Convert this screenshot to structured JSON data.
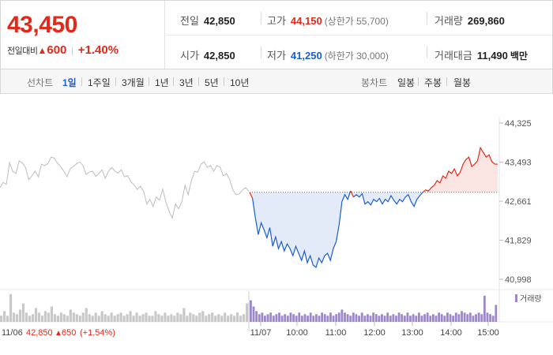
{
  "summary": {
    "current_price": "43,450",
    "change_label": "전일대비",
    "change_triangle": "▲",
    "change_value": "600",
    "change_rate": "+1.40%",
    "stats": [
      {
        "key": "전일",
        "value": "42,850",
        "sub": "",
        "tone": "normal"
      },
      {
        "key": "고가",
        "value": "44,150",
        "sub": "(상한가 55,700)",
        "tone": "up"
      },
      {
        "key": "거래량",
        "value": "269,860",
        "sub": "",
        "tone": "normal"
      },
      {
        "key": "시가",
        "value": "42,850",
        "sub": "",
        "tone": "normal"
      },
      {
        "key": "저가",
        "value": "41,250",
        "sub": "(하한가 30,000)",
        "tone": "down"
      },
      {
        "key": "거래대금",
        "value": "11,490",
        "sub": "백만",
        "tone": "normal"
      }
    ]
  },
  "tabs": {
    "line_label": "선차트",
    "line_periods": [
      "1일",
      "1주일",
      "3개월",
      "1년",
      "3년",
      "5년",
      "10년"
    ],
    "active_period": "1일",
    "candle_label": "봉차트",
    "candle_periods": [
      "일봉",
      "주봉",
      "월봉"
    ]
  },
  "chart_data": {
    "type": "line",
    "y_ticks": [
      "44,325",
      "43,493",
      "42,661",
      "41,829",
      "40,998"
    ],
    "y_range": [
      40998,
      44325
    ],
    "prev_close": 42850,
    "x_ticks": [
      "11/07",
      "10:00",
      "11:00",
      "12:00",
      "13:00",
      "14:00",
      "15:00"
    ],
    "volume_legend": "거래량",
    "footer_date": "11/06",
    "footer_price": "42,850",
    "footer_triangle": "▲",
    "footer_change": "650",
    "footer_rate": "(+1.54%)",
    "colors": {
      "up": "#e12a1b",
      "down": "#1a5ed1",
      "prev_day": "#bdbdbd",
      "volume": "#9c87c9"
    },
    "prev_day_series": [
      42950,
      43060,
      43020,
      43480,
      43300,
      43250,
      43520,
      43480,
      43380,
      43120,
      43200,
      43300,
      43180,
      43450,
      43420,
      43460,
      43600,
      43580,
      43470,
      43400,
      43300,
      43180,
      43350,
      43400,
      43460,
      43500,
      43420,
      43230,
      43280,
      43300,
      43190,
      43250,
      43330,
      43150,
      43300,
      43380,
      43300,
      43260,
      43330,
      43180,
      43210,
      43080,
      43010,
      42910,
      42980,
      42880,
      42600,
      42700,
      42550,
      42750,
      42680,
      42920,
      42640,
      42450,
      42300,
      42600,
      42500,
      42650,
      43000,
      42800,
      43100,
      43300,
      43280,
      43450,
      43500,
      43380,
      43420,
      43300,
      43420,
      43380,
      43200,
      43250,
      43120,
      42900,
      42800,
      42820,
      42900,
      42950,
      42870
    ],
    "today_series": [
      42850,
      42720,
      42300,
      41950,
      42200,
      42050,
      41880,
      42100,
      41700,
      41900,
      41650,
      41800,
      41600,
      41750,
      41650,
      41500,
      41700,
      41550,
      41400,
      41600,
      41350,
      41500,
      41300,
      41250,
      41450,
      41350,
      41500,
      41550,
      41400,
      41650,
      41800,
      42150,
      42650,
      42800,
      42700,
      42880,
      42750,
      42800,
      42750,
      42820,
      42600,
      42650,
      42580,
      42700,
      42650,
      42720,
      42600,
      42700,
      42650,
      42780,
      42680,
      42600,
      42700,
      42650,
      42750,
      42800,
      42650,
      42550,
      42700,
      42780,
      42850,
      42900,
      42880,
      42950,
      43000,
      43100,
      43050,
      43200,
      43150,
      43300,
      43250,
      43350,
      43200,
      43280,
      43450,
      43550,
      43600,
      43400,
      43450,
      43520,
      43800,
      43700,
      43600,
      43650,
      43500,
      43450,
      43450
    ],
    "volume_prev": [
      0.2,
      0.35,
      0.2,
      0.9,
      0.3,
      0.25,
      0.4,
      0.6,
      0.3,
      0.2,
      0.25,
      0.45,
      0.3,
      0.2,
      0.35,
      0.3,
      0.5,
      0.25,
      0.2,
      0.3,
      0.25,
      0.2,
      0.4,
      0.3,
      0.25,
      0.2,
      0.3,
      0.45,
      0.25,
      0.2,
      0.3,
      0.2,
      0.35,
      0.25,
      0.2,
      0.3,
      0.2,
      0.25,
      0.3,
      0.2,
      0.25,
      0.35,
      0.2,
      0.3,
      0.2,
      0.25,
      0.3,
      0.2,
      0.2,
      0.35,
      0.25,
      0.2,
      0.3,
      0.2,
      0.25,
      0.2,
      0.3,
      0.25,
      0.45,
      0.2,
      0.3,
      0.25,
      0.2,
      0.3,
      0.35,
      0.2,
      0.25,
      0.3,
      0.2,
      0.25,
      0.2,
      0.3,
      0.2,
      0.25,
      0.2,
      0.3,
      0.2,
      0.25,
      0.6
    ],
    "volume_today": [
      0.7,
      0.5,
      0.35,
      0.25,
      0.3,
      0.2,
      0.25,
      0.3,
      0.2,
      0.25,
      0.3,
      0.2,
      0.25,
      0.2,
      0.3,
      0.25,
      0.2,
      0.3,
      0.2,
      0.25,
      0.2,
      0.3,
      0.2,
      0.25,
      0.2,
      0.3,
      0.25,
      0.2,
      0.3,
      0.2,
      0.25,
      0.3,
      0.4,
      0.3,
      0.25,
      0.2,
      0.3,
      0.25,
      0.2,
      0.3,
      0.2,
      0.25,
      0.2,
      0.3,
      0.25,
      0.2,
      0.25,
      0.2,
      0.3,
      0.2,
      0.25,
      0.2,
      0.3,
      0.25,
      0.2,
      0.3,
      0.2,
      0.25,
      0.2,
      0.3,
      0.2,
      0.25,
      0.3,
      0.2,
      0.25,
      0.2,
      0.3,
      0.25,
      0.2,
      0.3,
      0.25,
      0.2,
      0.3,
      0.25,
      0.35,
      0.3,
      0.25,
      0.3,
      0.2,
      0.25,
      0.3,
      0.25,
      0.85,
      0.3,
      0.25,
      0.2,
      0.55
    ]
  }
}
